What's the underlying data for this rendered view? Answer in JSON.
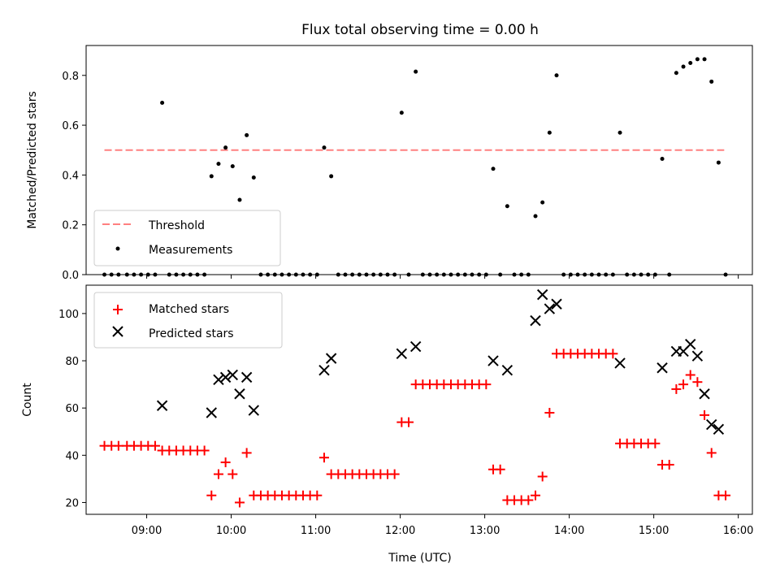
{
  "chart_data": [
    {
      "panel": "top",
      "type": "scatter",
      "title": "Flux total observing time = 0.00 h",
      "ylabel": "Matched/Predicted stars",
      "xlabel": "",
      "xlim": [
        "08:17",
        "16:10"
      ],
      "ylim": [
        0,
        0.92
      ],
      "yticks": [
        0.0,
        0.2,
        0.4,
        0.6,
        0.8
      ],
      "legend": {
        "position": "lower-left",
        "entries": [
          "Threshold",
          "Measurements"
        ]
      },
      "threshold": {
        "name": "Threshold",
        "value": 0.5,
        "x": [
          "08:30",
          "15:50"
        ],
        "color": "#ff8080"
      },
      "measurements": {
        "name": "Measurements",
        "color": "#000000",
        "points": [
          [
            "08:30",
            0
          ],
          [
            "08:35",
            0
          ],
          [
            "08:40",
            0
          ],
          [
            "08:46",
            0
          ],
          [
            "08:51",
            0
          ],
          [
            "08:56",
            0
          ],
          [
            "09:01",
            0
          ],
          [
            "09:06",
            0
          ],
          [
            "09:11",
            0.69
          ],
          [
            "09:16",
            0
          ],
          [
            "09:21",
            0
          ],
          [
            "09:26",
            0
          ],
          [
            "09:31",
            0
          ],
          [
            "09:36",
            0
          ],
          [
            "09:41",
            0
          ],
          [
            "09:46",
            0.395
          ],
          [
            "09:51",
            0.445
          ],
          [
            "09:56",
            0.51
          ],
          [
            "10:01",
            0.435
          ],
          [
            "10:06",
            0.3
          ],
          [
            "10:11",
            0.56
          ],
          [
            "10:16",
            0.39
          ],
          [
            "10:21",
            0
          ],
          [
            "10:26",
            0
          ],
          [
            "10:31",
            0
          ],
          [
            "10:36",
            0
          ],
          [
            "10:41",
            0
          ],
          [
            "10:46",
            0
          ],
          [
            "10:51",
            0
          ],
          [
            "10:56",
            0
          ],
          [
            "11:01",
            0
          ],
          [
            "11:06",
            0.51
          ],
          [
            "11:11",
            0.395
          ],
          [
            "11:16",
            0
          ],
          [
            "11:21",
            0
          ],
          [
            "11:26",
            0
          ],
          [
            "11:31",
            0
          ],
          [
            "11:36",
            0
          ],
          [
            "11:41",
            0
          ],
          [
            "11:46",
            0
          ],
          [
            "11:51",
            0
          ],
          [
            "11:56",
            0
          ],
          [
            "12:01",
            0.65
          ],
          [
            "12:06",
            0
          ],
          [
            "12:11",
            0.815
          ],
          [
            "12:16",
            0
          ],
          [
            "12:21",
            0
          ],
          [
            "12:26",
            0
          ],
          [
            "12:31",
            0
          ],
          [
            "12:36",
            0
          ],
          [
            "12:41",
            0
          ],
          [
            "12:46",
            0
          ],
          [
            "12:51",
            0
          ],
          [
            "12:56",
            0
          ],
          [
            "13:01",
            0
          ],
          [
            "13:06",
            0.425
          ],
          [
            "13:11",
            0
          ],
          [
            "13:16",
            0.275
          ],
          [
            "13:21",
            0
          ],
          [
            "13:26",
            0
          ],
          [
            "13:31",
            0
          ],
          [
            "13:36",
            0.235
          ],
          [
            "13:41",
            0.29
          ],
          [
            "13:46",
            0.57
          ],
          [
            "13:51",
            0.8
          ],
          [
            "13:56",
            0
          ],
          [
            "14:01",
            0
          ],
          [
            "14:06",
            0
          ],
          [
            "14:11",
            0
          ],
          [
            "14:16",
            0
          ],
          [
            "14:21",
            0
          ],
          [
            "14:26",
            0
          ],
          [
            "14:31",
            0
          ],
          [
            "14:36",
            0.57
          ],
          [
            "14:41",
            0
          ],
          [
            "14:46",
            0
          ],
          [
            "14:51",
            0
          ],
          [
            "14:56",
            0
          ],
          [
            "15:01",
            0
          ],
          [
            "15:06",
            0.465
          ],
          [
            "15:11",
            0
          ],
          [
            "15:16",
            0.81
          ],
          [
            "15:21",
            0.835
          ],
          [
            "15:26",
            0.85
          ],
          [
            "15:31",
            0.865
          ],
          [
            "15:36",
            0.865
          ],
          [
            "15:41",
            0.775
          ],
          [
            "15:46",
            0.45
          ],
          [
            "15:51",
            0
          ]
        ]
      }
    },
    {
      "panel": "bottom",
      "type": "scatter",
      "title": "",
      "ylabel": "Count",
      "xlabel": "Time (UTC)",
      "xlim": [
        "08:17",
        "16:10"
      ],
      "ylim": [
        15,
        112
      ],
      "yticks": [
        20,
        40,
        60,
        80,
        100
      ],
      "xticks": [
        "09:00",
        "10:00",
        "11:00",
        "12:00",
        "13:00",
        "14:00",
        "15:00",
        "16:00"
      ],
      "legend": {
        "position": "top-left",
        "entries": [
          "Matched stars",
          "Predicted stars"
        ]
      },
      "series": [
        {
          "name": "Matched stars",
          "marker": "plus",
          "color": "#ff0000",
          "points": [
            [
              "08:30",
              44
            ],
            [
              "08:35",
              44
            ],
            [
              "08:40",
              44
            ],
            [
              "08:46",
              44
            ],
            [
              "08:51",
              44
            ],
            [
              "08:56",
              44
            ],
            [
              "09:01",
              44
            ],
            [
              "09:06",
              44
            ],
            [
              "09:11",
              42
            ],
            [
              "09:16",
              42
            ],
            [
              "09:21",
              42
            ],
            [
              "09:26",
              42
            ],
            [
              "09:31",
              42
            ],
            [
              "09:36",
              42
            ],
            [
              "09:41",
              42
            ],
            [
              "09:46",
              23
            ],
            [
              "09:51",
              32
            ],
            [
              "09:56",
              37
            ],
            [
              "10:01",
              32
            ],
            [
              "10:06",
              20
            ],
            [
              "10:11",
              41
            ],
            [
              "10:16",
              23
            ],
            [
              "10:21",
              23
            ],
            [
              "10:26",
              23
            ],
            [
              "10:31",
              23
            ],
            [
              "10:36",
              23
            ],
            [
              "10:41",
              23
            ],
            [
              "10:46",
              23
            ],
            [
              "10:51",
              23
            ],
            [
              "10:56",
              23
            ],
            [
              "11:01",
              23
            ],
            [
              "11:06",
              39
            ],
            [
              "11:11",
              32
            ],
            [
              "11:16",
              32
            ],
            [
              "11:21",
              32
            ],
            [
              "11:26",
              32
            ],
            [
              "11:31",
              32
            ],
            [
              "11:36",
              32
            ],
            [
              "11:41",
              32
            ],
            [
              "11:46",
              32
            ],
            [
              "11:51",
              32
            ],
            [
              "11:56",
              32
            ],
            [
              "12:01",
              54
            ],
            [
              "12:06",
              54
            ],
            [
              "12:11",
              70
            ],
            [
              "12:16",
              70
            ],
            [
              "12:21",
              70
            ],
            [
              "12:26",
              70
            ],
            [
              "12:31",
              70
            ],
            [
              "12:36",
              70
            ],
            [
              "12:41",
              70
            ],
            [
              "12:46",
              70
            ],
            [
              "12:51",
              70
            ],
            [
              "12:56",
              70
            ],
            [
              "13:01",
              70
            ],
            [
              "13:06",
              34
            ],
            [
              "13:11",
              34
            ],
            [
              "13:16",
              21
            ],
            [
              "13:21",
              21
            ],
            [
              "13:26",
              21
            ],
            [
              "13:31",
              21
            ],
            [
              "13:36",
              23
            ],
            [
              "13:41",
              31
            ],
            [
              "13:46",
              58
            ],
            [
              "13:51",
              83
            ],
            [
              "13:56",
              83
            ],
            [
              "14:01",
              83
            ],
            [
              "14:06",
              83
            ],
            [
              "14:11",
              83
            ],
            [
              "14:16",
              83
            ],
            [
              "14:21",
              83
            ],
            [
              "14:26",
              83
            ],
            [
              "14:31",
              83
            ],
            [
              "14:36",
              45
            ],
            [
              "14:41",
              45
            ],
            [
              "14:46",
              45
            ],
            [
              "14:51",
              45
            ],
            [
              "14:56",
              45
            ],
            [
              "15:01",
              45
            ],
            [
              "15:06",
              36
            ],
            [
              "15:11",
              36
            ],
            [
              "15:16",
              68
            ],
            [
              "15:21",
              70
            ],
            [
              "15:26",
              74
            ],
            [
              "15:31",
              71
            ],
            [
              "15:36",
              57
            ],
            [
              "15:41",
              41
            ],
            [
              "15:46",
              23
            ],
            [
              "15:51",
              23
            ]
          ]
        },
        {
          "name": "Predicted stars",
          "marker": "x",
          "color": "#000000",
          "points": [
            [
              "09:11",
              61
            ],
            [
              "09:46",
              58
            ],
            [
              "09:51",
              72
            ],
            [
              "09:56",
              73
            ],
            [
              "10:01",
              74
            ],
            [
              "10:06",
              66
            ],
            [
              "10:11",
              73
            ],
            [
              "10:16",
              59
            ],
            [
              "11:06",
              76
            ],
            [
              "11:11",
              81
            ],
            [
              "12:01",
              83
            ],
            [
              "12:11",
              86
            ],
            [
              "13:06",
              80
            ],
            [
              "13:16",
              76
            ],
            [
              "13:36",
              97
            ],
            [
              "13:41",
              108
            ],
            [
              "13:46",
              102
            ],
            [
              "13:51",
              104
            ],
            [
              "14:36",
              79
            ],
            [
              "15:06",
              77
            ],
            [
              "15:16",
              84
            ],
            [
              "15:21",
              84
            ],
            [
              "15:26",
              87
            ],
            [
              "15:31",
              82
            ],
            [
              "15:36",
              66
            ],
            [
              "15:41",
              53
            ],
            [
              "15:46",
              51
            ]
          ]
        }
      ]
    }
  ]
}
